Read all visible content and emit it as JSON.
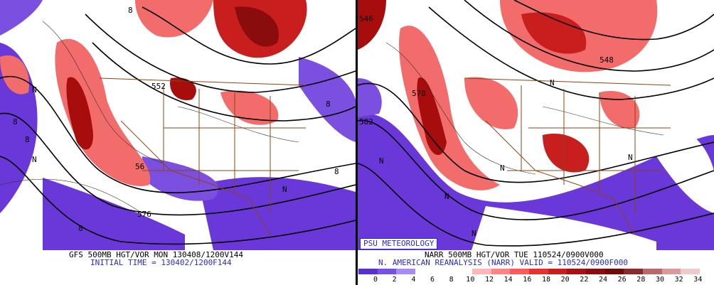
{
  "left_panel": {
    "caption_line1": "GFS 500MB HGT/VOR MON 130408/1200V144",
    "caption_line2": "INITIAL TIME = 130402/1200F144",
    "contour_labels": [
      "8",
      "8",
      "8",
      "552",
      "8",
      "8",
      "56",
      "576",
      "8",
      "N",
      "N",
      "N"
    ]
  },
  "right_panel": {
    "badge": "PSU METEOROLOGY",
    "caption_line1": "NARR 500MB HGT/VOR TUE 110524/0900V000",
    "caption_line2": "N. AMERICAN REANALYSIS (NARR) VALID = 110524/0900F000",
    "contour_labels": [
      "546",
      "570",
      "582",
      "548",
      "N",
      "N",
      "N",
      "N",
      "N",
      "N"
    ]
  },
  "colorbar": {
    "ticks": [
      "0",
      "2",
      "4",
      "6",
      "8",
      "10",
      "12",
      "14",
      "16",
      "18",
      "20",
      "22",
      "24",
      "26",
      "28",
      "30",
      "32",
      "34"
    ],
    "colors": [
      "#5a2fd0",
      "#7b4fe0",
      "#a68cf0",
      "#ffffff",
      "#ffffff",
      "#ffffff",
      "#ffb6b6",
      "#ff8585",
      "#ff5a5a",
      "#e83030",
      "#c81e1e",
      "#a81212",
      "#8b0c0c",
      "#6e0a0a",
      "#8a2a2a",
      "#b86a6a",
      "#d89a9a",
      "#f2c8c8"
    ]
  },
  "colors": {
    "vort_pos_light": "#f26c6c",
    "vort_pos_dark": "#a80d0d",
    "vort_neg": "#6a38d8",
    "borders": "#8b4513",
    "caption_blue": "#2a2ad4"
  }
}
